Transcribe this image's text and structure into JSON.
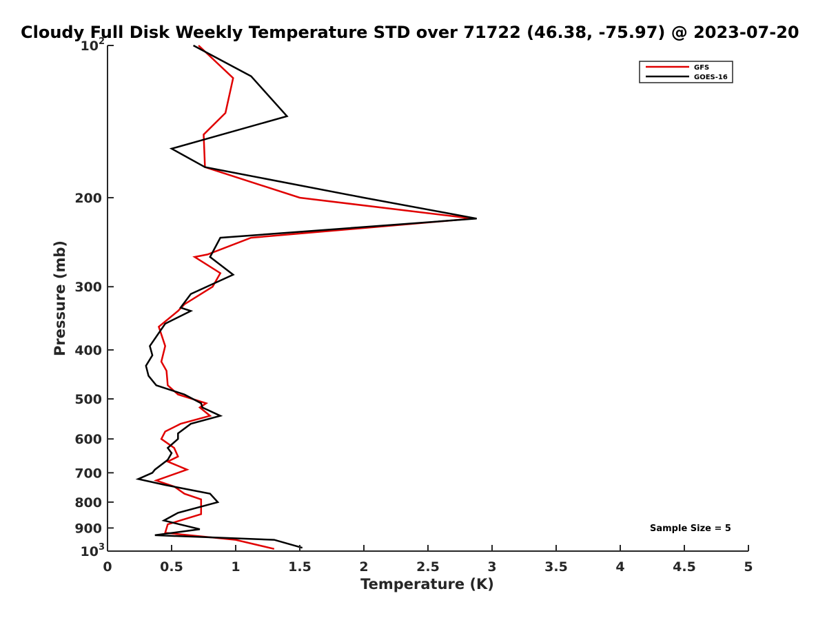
{
  "chart_data": {
    "type": "line",
    "title": "Cloudy Full Disk Weekly Temperature STD over 71722 (46.38, -75.97) @ 2023-07-20",
    "xlabel": "Temperature (K)",
    "ylabel": "Pressure (mb)",
    "xlim": [
      0,
      5
    ],
    "ylim": [
      100,
      1000
    ],
    "yscale": "log",
    "y_reversed": true,
    "xticks": [
      0,
      0.5,
      1,
      1.5,
      2,
      2.5,
      3,
      3.5,
      4,
      4.5,
      5
    ],
    "xtick_labels": [
      "0",
      "0.5",
      "1",
      "1.5",
      "2",
      "2.5",
      "3",
      "3.5",
      "4",
      "4.5",
      "5"
    ],
    "yticks": [
      {
        "value": 100,
        "base": "10",
        "exp": "2"
      },
      {
        "value": 200,
        "base": "200",
        "exp": ""
      },
      {
        "value": 300,
        "base": "300",
        "exp": ""
      },
      {
        "value": 400,
        "base": "400",
        "exp": ""
      },
      {
        "value": 500,
        "base": "500",
        "exp": ""
      },
      {
        "value": 600,
        "base": "600",
        "exp": ""
      },
      {
        "value": 700,
        "base": "700",
        "exp": ""
      },
      {
        "value": 800,
        "base": "800",
        "exp": ""
      },
      {
        "value": 900,
        "base": "900",
        "exp": ""
      },
      {
        "value": 1000,
        "base": "10",
        "exp": "3"
      }
    ],
    "legend_position": "top-right",
    "series": [
      {
        "name": "GFS",
        "color": "#e00000",
        "points": [
          [
            0.71,
            100
          ],
          [
            0.98,
            116
          ],
          [
            0.92,
            136
          ],
          [
            0.75,
            150
          ],
          [
            0.76,
            174
          ],
          [
            1.5,
            200
          ],
          [
            2.85,
            220
          ],
          [
            1.12,
            240
          ],
          [
            0.78,
            259
          ],
          [
            0.68,
            262
          ],
          [
            0.88,
            282
          ],
          [
            0.82,
            300
          ],
          [
            0.6,
            325
          ],
          [
            0.55,
            335
          ],
          [
            0.4,
            360
          ],
          [
            0.45,
            393
          ],
          [
            0.42,
            422
          ],
          [
            0.46,
            440
          ],
          [
            0.47,
            470
          ],
          [
            0.55,
            490
          ],
          [
            0.77,
            510
          ],
          [
            0.72,
            520
          ],
          [
            0.8,
            540
          ],
          [
            0.57,
            560
          ],
          [
            0.45,
            580
          ],
          [
            0.42,
            600
          ],
          [
            0.52,
            625
          ],
          [
            0.55,
            650
          ],
          [
            0.47,
            665
          ],
          [
            0.62,
            690
          ],
          [
            0.38,
            725
          ],
          [
            0.52,
            745
          ],
          [
            0.6,
            770
          ],
          [
            0.73,
            790
          ],
          [
            0.73,
            845
          ],
          [
            0.47,
            885
          ],
          [
            0.45,
            920
          ],
          [
            1.0,
            950
          ],
          [
            1.3,
            990
          ]
        ]
      },
      {
        "name": "GOES-16",
        "color": "#000000",
        "points": [
          [
            0.67,
            100
          ],
          [
            1.12,
            115
          ],
          [
            1.4,
            138
          ],
          [
            0.5,
            160
          ],
          [
            0.76,
            174
          ],
          [
            2.0,
            200
          ],
          [
            2.88,
            220
          ],
          [
            0.88,
            240
          ],
          [
            0.8,
            262
          ],
          [
            0.98,
            284
          ],
          [
            0.65,
            310
          ],
          [
            0.57,
            330
          ],
          [
            0.65,
            335
          ],
          [
            0.45,
            355
          ],
          [
            0.33,
            393
          ],
          [
            0.35,
            410
          ],
          [
            0.3,
            430
          ],
          [
            0.32,
            450
          ],
          [
            0.38,
            470
          ],
          [
            0.6,
            490
          ],
          [
            0.73,
            510
          ],
          [
            0.74,
            520
          ],
          [
            0.88,
            540
          ],
          [
            0.65,
            560
          ],
          [
            0.55,
            585
          ],
          [
            0.55,
            600
          ],
          [
            0.47,
            625
          ],
          [
            0.5,
            640
          ],
          [
            0.47,
            660
          ],
          [
            0.37,
            690
          ],
          [
            0.35,
            700
          ],
          [
            0.24,
            720
          ],
          [
            0.45,
            740
          ],
          [
            0.8,
            770
          ],
          [
            0.86,
            800
          ],
          [
            0.55,
            840
          ],
          [
            0.44,
            870
          ],
          [
            0.72,
            905
          ],
          [
            0.37,
            930
          ],
          [
            1.3,
            950
          ],
          [
            1.52,
            985
          ]
        ]
      }
    ],
    "annotations": [
      "Sample Size = 5"
    ]
  }
}
